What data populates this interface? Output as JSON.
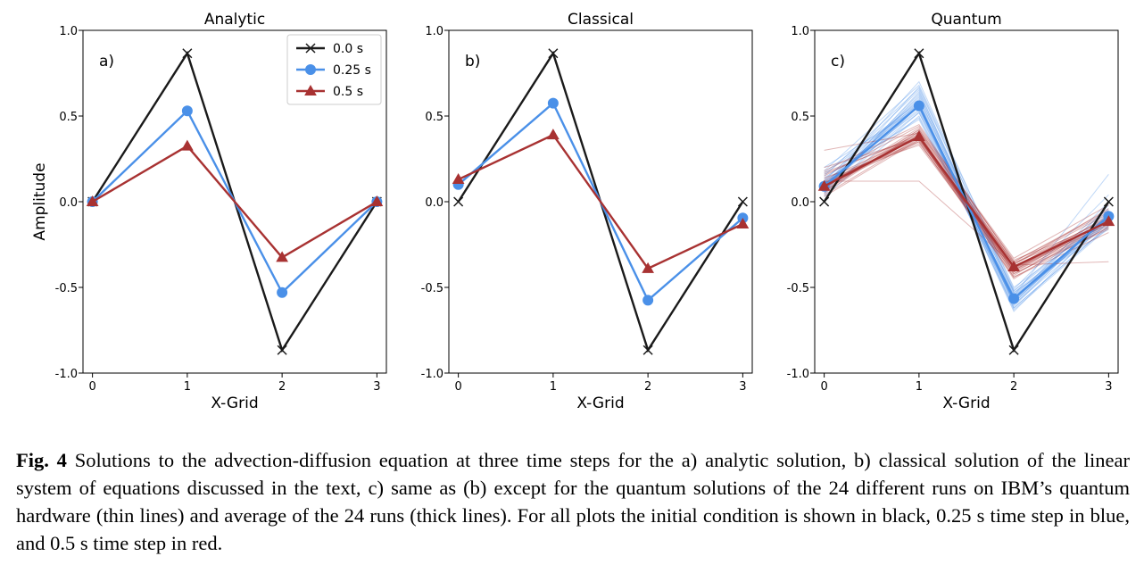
{
  "chart_data": [
    {
      "type": "line",
      "title": "Analytic",
      "panel_label": "a)",
      "xlabel": "X-Grid",
      "ylabel": "Amplitude",
      "x": [
        0,
        1,
        2,
        3
      ],
      "xlim": [
        -0.1,
        3.1
      ],
      "ylim": [
        -1.0,
        1.0
      ],
      "yticks": [
        1.0,
        0.5,
        0.0,
        -0.5,
        -1.0
      ],
      "ytick_labels": [
        "1.0",
        "0.5",
        "0.0",
        "-0.5",
        "-1.0"
      ],
      "xtick_labels": [
        "0",
        "1",
        "2",
        "3"
      ],
      "legend": "top-right",
      "series": [
        {
          "name": "0.0 s",
          "color": "#1a1a1a",
          "marker": "x",
          "values": [
            0.0,
            0.866,
            -0.866,
            0.0
          ]
        },
        {
          "name": "0.25 s",
          "color": "#4a90e8",
          "marker": "circle",
          "values": [
            0.0,
            0.53,
            -0.53,
            0.0
          ]
        },
        {
          "name": "0.5 s",
          "color": "#a83232",
          "marker": "triangle",
          "values": [
            0.0,
            0.325,
            -0.325,
            0.0
          ]
        }
      ]
    },
    {
      "type": "line",
      "title": "Classical",
      "panel_label": "b)",
      "xlabel": "X-Grid",
      "ylabel": "",
      "x": [
        0,
        1,
        2,
        3
      ],
      "xlim": [
        -0.1,
        3.1
      ],
      "ylim": [
        -1.0,
        1.0
      ],
      "yticks": [
        1.0,
        0.5,
        0.0,
        -0.5,
        -1.0
      ],
      "ytick_labels": [
        "1.0",
        "0.5",
        "0.0",
        "-0.5",
        "-1.0"
      ],
      "xtick_labels": [
        "0",
        "1",
        "2",
        "3"
      ],
      "series": [
        {
          "name": "0.0 s",
          "color": "#1a1a1a",
          "marker": "x",
          "values": [
            0.0,
            0.866,
            -0.866,
            0.0
          ]
        },
        {
          "name": "0.25 s",
          "color": "#4a90e8",
          "marker": "circle",
          "values": [
            0.1,
            0.575,
            -0.575,
            -0.095
          ]
        },
        {
          "name": "0.5 s",
          "color": "#a83232",
          "marker": "triangle",
          "values": [
            0.13,
            0.39,
            -0.39,
            -0.13
          ]
        }
      ]
    },
    {
      "type": "line",
      "title": "Quantum",
      "panel_label": "c)",
      "xlabel": "X-Grid",
      "ylabel": "",
      "x": [
        0,
        1,
        2,
        3
      ],
      "xlim": [
        -0.1,
        3.1
      ],
      "ylim": [
        -1.0,
        1.0
      ],
      "yticks": [
        1.0,
        0.5,
        0.0,
        -0.5,
        -1.0
      ],
      "ytick_labels": [
        "1.0",
        "0.5",
        "0.0",
        "-0.5",
        "-1.0"
      ],
      "xtick_labels": [
        "0",
        "1",
        "2",
        "3"
      ],
      "series": [
        {
          "name": "0.0 s",
          "color": "#1a1a1a",
          "marker": "x",
          "values": [
            0.0,
            0.866,
            -0.866,
            0.0
          ]
        },
        {
          "name": "0.25 s",
          "color": "#4a90e8",
          "marker": "circle",
          "values": [
            0.09,
            0.56,
            -0.565,
            -0.085
          ]
        },
        {
          "name": "0.5 s",
          "color": "#a83232",
          "marker": "triangle",
          "values": [
            0.09,
            0.38,
            -0.38,
            -0.115
          ]
        }
      ],
      "runs": {
        "count": 24,
        "blue": [
          [
            0.08,
            0.6,
            -0.52,
            -0.08
          ],
          [
            0.12,
            0.65,
            -0.6,
            -0.12
          ],
          [
            0.05,
            0.52,
            -0.55,
            -0.05
          ],
          [
            0.18,
            0.68,
            -0.5,
            -0.1
          ],
          [
            0.1,
            0.58,
            -0.62,
            -0.14
          ],
          [
            0.14,
            0.48,
            -0.58,
            -0.02
          ],
          [
            0.06,
            0.62,
            -0.53,
            -0.16
          ],
          [
            0.2,
            0.55,
            -0.64,
            -0.09
          ],
          [
            0.03,
            0.5,
            -0.57,
            -0.11
          ],
          [
            0.09,
            0.7,
            -0.51,
            0.04
          ],
          [
            0.16,
            0.57,
            -0.61,
            -0.07
          ],
          [
            0.11,
            0.53,
            -0.55,
            -0.13
          ],
          [
            0.07,
            0.63,
            -0.59,
            -0.06
          ],
          [
            0.13,
            0.59,
            -0.54,
            -0.1
          ],
          [
            0.04,
            0.56,
            -0.63,
            -0.15
          ],
          [
            0.15,
            0.66,
            -0.52,
            -0.04
          ],
          [
            0.1,
            0.54,
            -0.56,
            -0.12
          ],
          [
            0.08,
            0.61,
            -0.6,
            -0.08
          ],
          [
            0.12,
            0.49,
            -0.57,
            0.0
          ],
          [
            0.06,
            0.67,
            -0.53,
            -0.11
          ],
          [
            0.17,
            0.58,
            -0.58,
            -0.09
          ],
          [
            0.09,
            0.52,
            -0.62,
            -0.14
          ],
          [
            0.05,
            0.64,
            -0.55,
            0.16
          ],
          [
            0.11,
            0.57,
            -0.59,
            -0.07
          ]
        ],
        "red": [
          [
            0.08,
            0.42,
            -0.36,
            -0.1
          ],
          [
            0.12,
            0.35,
            -0.42,
            -0.15
          ],
          [
            0.3,
            0.4,
            -0.38,
            -0.12
          ],
          [
            0.18,
            0.45,
            -0.35,
            -0.05
          ],
          [
            0.1,
            0.38,
            -0.44,
            -0.18
          ],
          [
            0.14,
            0.33,
            -0.4,
            -0.08
          ],
          [
            0.06,
            0.41,
            -0.37,
            -0.35
          ],
          [
            0.2,
            0.37,
            -0.45,
            -0.11
          ],
          [
            0.03,
            0.36,
            -0.39,
            -0.13
          ],
          [
            0.09,
            0.43,
            -0.33,
            -0.02
          ],
          [
            0.16,
            0.39,
            -0.41,
            -0.14
          ],
          [
            0.11,
            0.34,
            -0.38,
            -0.09
          ],
          [
            0.07,
            0.4,
            -0.43,
            -0.1
          ],
          [
            0.13,
            0.38,
            -0.36,
            -0.12
          ],
          [
            0.04,
            0.37,
            -0.42,
            -0.16
          ],
          [
            0.15,
            0.44,
            -0.35,
            -0.06
          ],
          [
            0.1,
            0.36,
            -0.39,
            -0.11
          ],
          [
            0.08,
            0.39,
            -0.4,
            -0.13
          ],
          [
            0.12,
            0.12,
            -0.37,
            -0.04
          ],
          [
            0.06,
            0.42,
            -0.34,
            -0.12
          ],
          [
            0.17,
            0.38,
            -0.41,
            -0.1
          ],
          [
            0.09,
            0.35,
            -0.44,
            -0.15
          ],
          [
            0.05,
            0.41,
            -0.36,
            -0.07
          ],
          [
            0.11,
            0.37,
            -0.4,
            -0.11
          ]
        ]
      }
    }
  ],
  "caption": {
    "label": "Fig. 4",
    "text": " Solutions to the advection-diffusion equation at three time steps for the a) analytic solution, b) classical solution of the linear system of equations discussed in the text, c) same as (b) except for the quantum solutions of the 24 different runs on IBM’s quantum hardware (thin lines) and average of the 24 runs (thick lines). For all plots the initial condition is shown in black, 0.25 s time step in blue, and 0.5 s time step in red."
  }
}
